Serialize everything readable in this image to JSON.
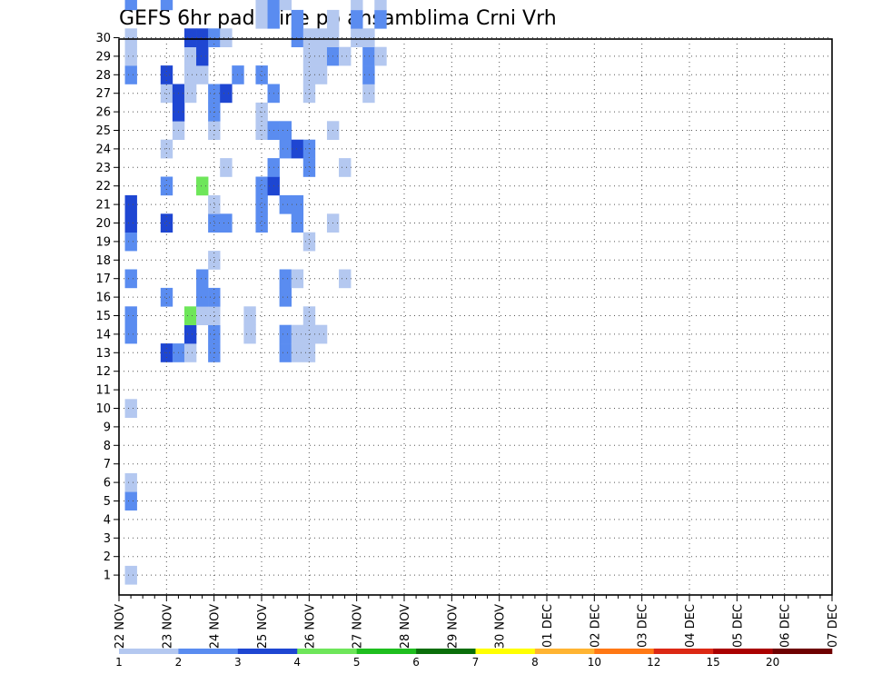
{
  "chart_data": {
    "type": "heatmap",
    "title": "GEFS 6hr padavine po ansamblima Crni Vrh",
    "xlabel": "",
    "ylabel": "",
    "x_tick_labels": [
      "22 NOV",
      "23 NOV",
      "24 NOV",
      "25 NOV",
      "26 NOV",
      "27 NOV",
      "28 NOV",
      "29 NOV",
      "30 NOV",
      "01 DEC",
      "02 DEC",
      "03 DEC",
      "04 DEC",
      "05 DEC",
      "06 DEC",
      "07 DEC"
    ],
    "y_tick_labels": [
      "1",
      "2",
      "3",
      "4",
      "5",
      "6",
      "7",
      "8",
      "9",
      "10",
      "11",
      "12",
      "13",
      "14",
      "15",
      "16",
      "17",
      "18",
      "19",
      "20",
      "21",
      "22",
      "23",
      "24",
      "25",
      "26",
      "27",
      "28",
      "29",
      "30"
    ],
    "x_range": [
      "22 NOV 00Z",
      "07 DEC 00Z"
    ],
    "x_step_hours": 6,
    "y_range": [
      0,
      30
    ],
    "grid": true,
    "colorbar": {
      "labels": [
        "1",
        "2",
        "3",
        "4",
        "5",
        "6",
        "7",
        "8",
        "10",
        "12",
        "15",
        "20"
      ],
      "colors": [
        "#b4c8f0",
        "#5a8cf0",
        "#1e46d2",
        "#6ee65a",
        "#1ebe1e",
        "#0a6e0a",
        "#ffff00",
        "#ffb432",
        "#ff7814",
        "#dc2814",
        "#aa0000",
        "#6e0000"
      ]
    },
    "cells": [
      [
        1,
        1,
        1
      ],
      [
        1,
        5,
        2
      ],
      [
        1,
        6,
        1
      ],
      [
        1,
        10,
        1
      ],
      [
        1,
        14,
        2
      ],
      [
        1,
        15,
        2
      ],
      [
        1,
        17,
        2
      ],
      [
        1,
        19,
        2
      ],
      [
        1,
        20,
        3
      ],
      [
        1,
        21,
        3
      ],
      [
        1,
        28,
        2
      ],
      [
        1,
        29,
        1
      ],
      [
        1,
        30,
        1
      ],
      [
        1,
        32,
        2
      ],
      [
        1,
        35,
        2
      ],
      [
        1,
        37,
        1
      ],
      [
        1,
        41,
        2
      ],
      [
        1,
        42,
        2
      ],
      [
        1,
        44,
        2
      ],
      [
        1,
        45,
        1
      ],
      [
        1,
        47,
        1
      ],
      [
        1,
        49,
        2
      ],
      [
        1,
        50,
        2
      ],
      [
        1,
        52,
        1
      ],
      [
        1,
        53,
        1
      ],
      [
        1,
        56,
        1
      ],
      [
        1,
        57,
        1
      ],
      [
        1,
        58,
        2
      ],
      [
        4,
        13,
        3
      ],
      [
        4,
        16,
        2
      ],
      [
        4,
        20,
        3
      ],
      [
        4,
        22,
        2
      ],
      [
        4,
        24,
        1
      ],
      [
        4,
        27,
        1
      ],
      [
        4,
        28,
        3
      ],
      [
        4,
        32,
        2
      ],
      [
        4,
        33,
        2
      ],
      [
        4,
        34,
        2
      ],
      [
        4,
        35,
        2
      ],
      [
        4,
        38,
        1
      ],
      [
        4,
        42,
        1
      ],
      [
        4,
        44,
        2
      ],
      [
        4,
        47,
        3
      ],
      [
        4,
        48,
        3
      ],
      [
        5,
        13,
        2
      ],
      [
        5,
        25,
        1
      ],
      [
        5,
        26,
        3
      ],
      [
        5,
        27,
        3
      ],
      [
        5,
        43,
        1
      ],
      [
        5,
        44,
        1
      ],
      [
        5,
        45,
        1
      ],
      [
        5,
        46,
        1
      ],
      [
        5,
        49,
        1
      ],
      [
        5,
        50,
        1
      ],
      [
        5,
        52,
        1
      ],
      [
        6,
        13,
        1
      ],
      [
        6,
        14,
        3
      ],
      [
        6,
        15,
        4
      ],
      [
        6,
        27,
        1
      ],
      [
        6,
        28,
        1
      ],
      [
        6,
        29,
        1
      ],
      [
        6,
        30,
        3
      ],
      [
        6,
        51,
        3
      ],
      [
        6,
        52,
        3
      ],
      [
        6,
        53,
        2
      ],
      [
        6,
        54,
        1
      ],
      [
        7,
        15,
        1
      ],
      [
        7,
        16,
        2
      ],
      [
        7,
        17,
        2
      ],
      [
        7,
        22,
        4
      ],
      [
        7,
        28,
        1
      ],
      [
        7,
        29,
        3
      ],
      [
        7,
        30,
        3
      ],
      [
        7,
        34,
        2
      ],
      [
        7,
        36,
        1
      ],
      [
        7,
        37,
        1
      ],
      [
        7,
        41,
        2
      ],
      [
        7,
        42,
        1
      ],
      [
        8,
        13,
        2
      ],
      [
        8,
        14,
        2
      ],
      [
        8,
        15,
        1
      ],
      [
        8,
        16,
        2
      ],
      [
        8,
        18,
        1
      ],
      [
        8,
        20,
        2
      ],
      [
        8,
        21,
        1
      ],
      [
        8,
        25,
        1
      ],
      [
        8,
        26,
        2
      ],
      [
        8,
        27,
        2
      ],
      [
        8,
        30,
        2
      ],
      [
        9,
        20,
        2
      ],
      [
        9,
        23,
        1
      ],
      [
        9,
        27,
        3
      ],
      [
        9,
        30,
        1
      ],
      [
        9,
        39,
        1
      ],
      [
        9,
        40,
        1
      ],
      [
        9,
        41,
        2
      ],
      [
        9,
        48,
        2
      ],
      [
        9,
        49,
        3
      ],
      [
        9,
        50,
        2
      ],
      [
        10,
        28,
        2
      ],
      [
        10,
        33,
        1
      ],
      [
        10,
        34,
        1
      ],
      [
        10,
        36,
        1
      ],
      [
        10,
        37,
        1
      ],
      [
        10,
        38,
        1
      ],
      [
        10,
        40,
        1
      ],
      [
        10,
        41,
        1
      ],
      [
        10,
        50,
        2
      ],
      [
        10,
        51,
        2
      ],
      [
        10,
        52,
        1
      ],
      [
        10,
        53,
        1
      ],
      [
        10,
        56,
        2
      ],
      [
        11,
        14,
        1
      ],
      [
        11,
        15,
        1
      ],
      [
        11,
        35,
        1
      ],
      [
        11,
        36,
        2
      ],
      [
        11,
        40,
        2
      ],
      [
        11,
        41,
        3
      ],
      [
        11,
        42,
        1
      ],
      [
        11,
        43,
        1
      ],
      [
        11,
        44,
        1
      ],
      [
        11,
        45,
        1
      ],
      [
        11,
        46,
        2
      ],
      [
        11,
        47,
        1
      ],
      [
        11,
        50,
        1
      ],
      [
        11,
        51,
        1
      ],
      [
        12,
        20,
        2
      ],
      [
        12,
        21,
        2
      ],
      [
        12,
        22,
        2
      ],
      [
        12,
        25,
        1
      ],
      [
        12,
        26,
        1
      ],
      [
        12,
        28,
        2
      ],
      [
        12,
        31,
        1
      ],
      [
        12,
        32,
        1
      ],
      [
        12,
        33,
        1
      ],
      [
        12,
        35,
        1
      ],
      [
        12,
        47,
        1
      ],
      [
        12,
        48,
        1
      ],
      [
        13,
        22,
        3
      ],
      [
        13,
        23,
        2
      ],
      [
        13,
        25,
        2
      ],
      [
        13,
        27,
        2
      ],
      [
        13,
        31,
        2
      ],
      [
        13,
        32,
        2
      ],
      [
        13,
        33,
        2
      ],
      [
        13,
        38,
        1
      ],
      [
        13,
        43,
        1
      ],
      [
        13,
        44,
        1
      ],
      [
        13,
        45,
        1
      ],
      [
        13,
        46,
        1
      ],
      [
        13,
        47,
        1
      ],
      [
        13,
        48,
        1
      ],
      [
        13,
        54,
        1
      ],
      [
        13,
        55,
        1
      ],
      [
        14,
        13,
        2
      ],
      [
        14,
        14,
        2
      ],
      [
        14,
        16,
        2
      ],
      [
        14,
        17,
        2
      ],
      [
        14,
        21,
        2
      ],
      [
        14,
        24,
        2
      ],
      [
        14,
        25,
        2
      ],
      [
        14,
        32,
        1
      ],
      [
        14,
        33,
        1
      ],
      [
        14,
        41,
        1
      ],
      [
        14,
        42,
        1
      ],
      [
        14,
        44,
        1
      ],
      [
        14,
        45,
        1
      ],
      [
        14,
        46,
        2
      ],
      [
        14,
        48,
        1
      ],
      [
        15,
        13,
        1
      ],
      [
        15,
        14,
        1
      ],
      [
        15,
        17,
        1
      ],
      [
        15,
        20,
        2
      ],
      [
        15,
        21,
        2
      ],
      [
        15,
        24,
        3
      ],
      [
        15,
        30,
        2
      ],
      [
        15,
        31,
        2
      ],
      [
        15,
        33,
        1
      ],
      [
        15,
        34,
        1
      ],
      [
        15,
        40,
        1
      ],
      [
        15,
        41,
        1
      ],
      [
        15,
        42,
        2
      ],
      [
        15,
        43,
        2
      ],
      [
        15,
        44,
        1
      ],
      [
        15,
        45,
        1
      ],
      [
        15,
        51,
        2
      ],
      [
        15,
        52,
        2
      ],
      [
        15,
        53,
        2
      ],
      [
        16,
        13,
        1
      ],
      [
        16,
        14,
        1
      ],
      [
        16,
        15,
        1
      ],
      [
        16,
        19,
        1
      ],
      [
        16,
        23,
        2
      ],
      [
        16,
        24,
        2
      ],
      [
        16,
        27,
        1
      ],
      [
        16,
        28,
        1
      ],
      [
        16,
        29,
        1
      ],
      [
        16,
        30,
        1
      ],
      [
        16,
        39,
        1
      ],
      [
        16,
        40,
        1
      ],
      [
        16,
        42,
        1
      ],
      [
        17,
        14,
        1
      ],
      [
        17,
        28,
        1
      ],
      [
        17,
        29,
        1
      ],
      [
        17,
        30,
        1
      ],
      [
        17,
        36,
        1
      ],
      [
        17,
        37,
        1
      ],
      [
        17,
        38,
        2
      ],
      [
        17,
        39,
        1
      ],
      [
        17,
        40,
        3
      ],
      [
        17,
        43,
        1
      ],
      [
        17,
        44,
        1
      ],
      [
        17,
        45,
        1
      ],
      [
        17,
        46,
        1
      ],
      [
        18,
        20,
        1
      ],
      [
        18,
        25,
        1
      ],
      [
        18,
        29,
        2
      ],
      [
        18,
        30,
        1
      ],
      [
        18,
        31,
        1
      ],
      [
        18,
        34,
        1
      ],
      [
        18,
        35,
        1
      ],
      [
        18,
        36,
        1
      ],
      [
        18,
        40,
        1
      ],
      [
        18,
        41,
        1
      ],
      [
        18,
        42,
        1
      ],
      [
        19,
        17,
        1
      ],
      [
        19,
        23,
        1
      ],
      [
        19,
        29,
        1
      ],
      [
        19,
        37,
        2
      ],
      [
        19,
        38,
        2
      ],
      [
        19,
        39,
        2
      ],
      [
        19,
        40,
        1
      ],
      [
        19,
        43,
        1
      ],
      [
        19,
        44,
        1
      ],
      [
        19,
        45,
        1
      ],
      [
        19,
        46,
        1
      ],
      [
        19,
        48,
        1
      ],
      [
        20,
        30,
        1
      ],
      [
        20,
        31,
        2
      ],
      [
        20,
        32,
        1
      ],
      [
        20,
        40,
        1
      ],
      [
        20,
        41,
        2
      ],
      [
        20,
        42,
        2
      ],
      [
        20,
        43,
        1
      ],
      [
        20,
        44,
        1
      ],
      [
        20,
        47,
        1
      ],
      [
        20,
        48,
        1
      ],
      [
        20,
        49,
        2
      ],
      [
        20,
        50,
        2
      ],
      [
        20,
        51,
        1
      ],
      [
        20,
        52,
        1
      ],
      [
        20,
        53,
        1
      ],
      [
        20,
        56,
        2
      ],
      [
        21,
        27,
        1
      ],
      [
        21,
        28,
        2
      ],
      [
        21,
        29,
        2
      ],
      [
        21,
        30,
        1
      ],
      [
        21,
        38,
        3
      ],
      [
        21,
        39,
        3
      ],
      [
        21,
        43,
        1
      ],
      [
        21,
        44,
        1
      ],
      [
        21,
        46,
        3
      ],
      [
        21,
        47,
        2
      ],
      [
        21,
        48,
        2
      ],
      [
        21,
        49,
        1
      ],
      [
        21,
        51,
        2
      ],
      [
        21,
        53,
        1
      ],
      [
        21,
        54,
        2
      ],
      [
        21,
        55,
        2
      ],
      [
        21,
        58,
        1
      ],
      [
        22,
        29,
        1
      ],
      [
        22,
        31,
        2
      ],
      [
        22,
        32,
        1
      ],
      [
        22,
        33,
        2
      ],
      [
        22,
        34,
        2
      ],
      [
        22,
        36,
        1
      ],
      [
        22,
        37,
        1
      ],
      [
        22,
        38,
        2
      ],
      [
        22,
        39,
        2
      ],
      [
        22,
        44,
        1
      ],
      [
        22,
        45,
        1
      ],
      [
        22,
        46,
        2
      ],
      [
        22,
        47,
        2
      ],
      [
        22,
        51,
        1
      ],
      [
        22,
        52,
        1
      ],
      [
        22,
        53,
        1
      ],
      [
        22,
        54,
        1
      ],
      [
        22,
        55,
        1
      ],
      [
        22,
        56,
        2
      ]
    ]
  }
}
